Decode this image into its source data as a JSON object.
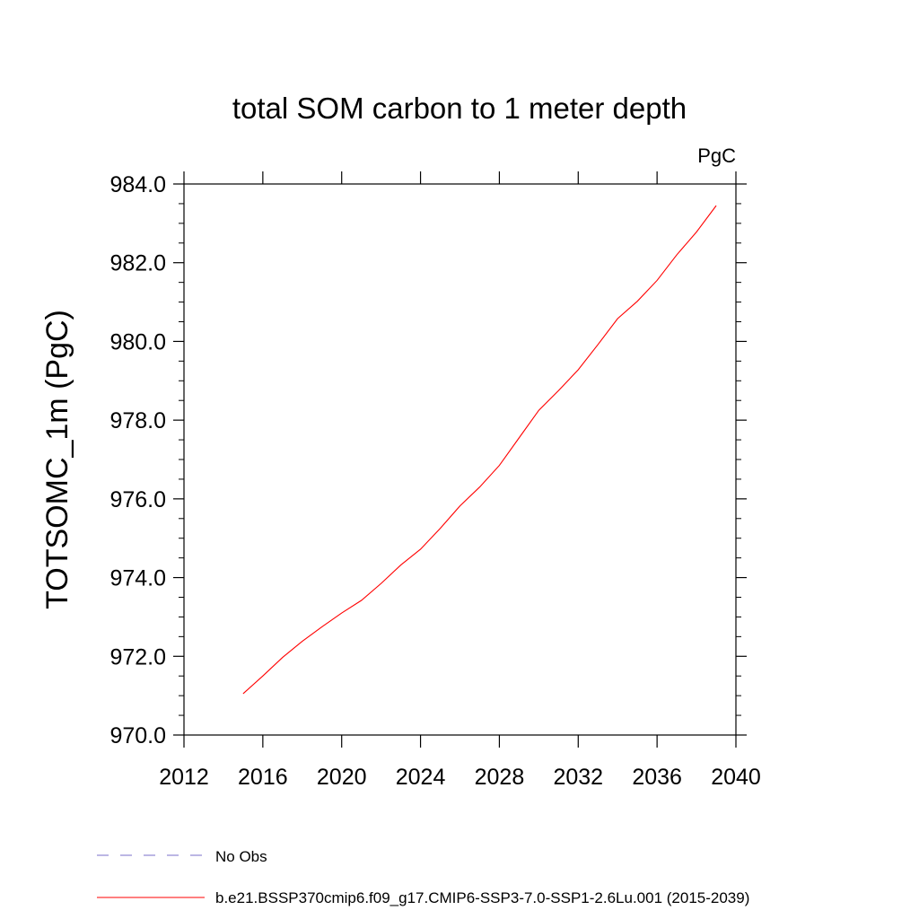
{
  "chart_data": {
    "type": "line",
    "title": "total SOM carbon to 1 meter depth",
    "units": "PgC",
    "ylabel": "TOTSOMC_1m  (PgC)",
    "xlabel": "",
    "xlim": [
      2012,
      2040
    ],
    "ylim": [
      970.0,
      984.0
    ],
    "xticks": [
      2012,
      2016,
      2020,
      2024,
      2028,
      2032,
      2036,
      2040
    ],
    "yticks": [
      "970.0",
      "972.0",
      "974.0",
      "976.0",
      "978.0",
      "980.0",
      "982.0",
      "984.0"
    ],
    "series": [
      {
        "name": "b.e21.BSSP370cmip6.f09_g17.CMIP6-SSP3-7.0-SSP1-2.6Lu.001 (2015-2039)",
        "color": "#ff0000",
        "style": "solid",
        "x": [
          2015,
          2016,
          2017,
          2018,
          2019,
          2020,
          2021,
          2022,
          2023,
          2024,
          2025,
          2026,
          2027,
          2028,
          2029,
          2030,
          2031,
          2032,
          2033,
          2034,
          2035,
          2036,
          2037,
          2038,
          2039
        ],
        "y": [
          971.05,
          971.5,
          971.97,
          972.38,
          972.75,
          973.1,
          973.42,
          973.85,
          974.32,
          974.72,
          975.25,
          975.82,
          976.3,
          976.85,
          977.55,
          978.25,
          978.75,
          979.28,
          979.92,
          980.58,
          981.02,
          981.55,
          982.2,
          982.78,
          983.45
        ]
      }
    ],
    "legend": [
      {
        "label": "No Obs",
        "color": "#7a6fc9",
        "style": "dashed"
      },
      {
        "label": "b.e21.BSSP370cmip6.f09_g17.CMIP6-SSP3-7.0-SSP1-2.6Lu.001 (2015-2039)",
        "color": "#ff0000",
        "style": "solid"
      }
    ],
    "legend_position": "bottom",
    "grid": false
  }
}
